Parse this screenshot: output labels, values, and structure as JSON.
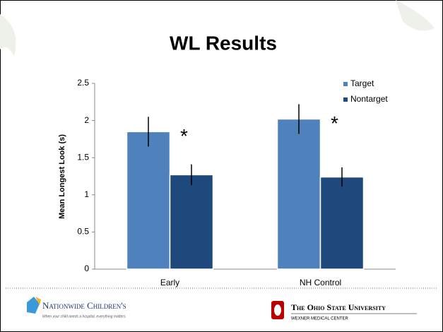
{
  "chart_data": {
    "type": "bar",
    "title": "WL Results",
    "y_label": "Mean Longest Look (s)",
    "categories": [
      "Early",
      "NH Control"
    ],
    "series": [
      {
        "name": "Target",
        "color": "#4f81bd",
        "values": [
          1.85,
          2.02
        ],
        "errors": [
          0.2,
          0.2
        ]
      },
      {
        "name": "Nontarget",
        "color": "#1f497d",
        "values": [
          1.27,
          1.24
        ],
        "errors": [
          0.14,
          0.13
        ]
      }
    ],
    "annotations": [
      "*",
      "*"
    ],
    "ylim": [
      0,
      2.5
    ],
    "yticks": [
      0,
      0.5,
      1,
      1.5,
      2,
      2.5
    ],
    "grid": false,
    "legend": "top-right"
  },
  "footer": {
    "left": "Nationwide Children's",
    "left_tagline": "When your child needs a hospital, everything matters.",
    "right": "The Ohio State University",
    "right_sub": "WEXNER MEDICAL CENTER"
  }
}
